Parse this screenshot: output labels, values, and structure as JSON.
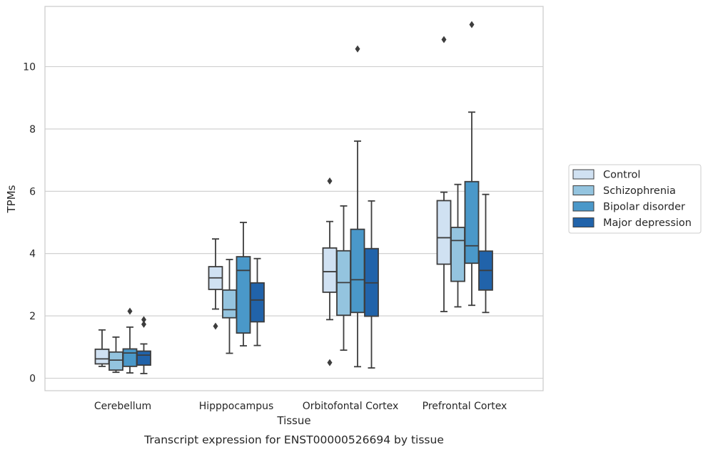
{
  "chart_data": {
    "type": "box",
    "caption": "Transcript expression for ENST00000526694 by tissue",
    "xlabel": "Tissue",
    "ylabel": "TPMs",
    "ylim": [
      -0.4,
      11.9
    ],
    "yticks": [
      0,
      2,
      4,
      6,
      8,
      10
    ],
    "grid": "horizontal",
    "legend_position": "right",
    "categories": [
      "Cerebellum",
      "Hipppocampus",
      "Orbitofontal Cortex",
      "Prefrontal Cortex"
    ],
    "series": [
      {
        "name": "Control",
        "color": "#d0e1f2",
        "boxes": [
          {
            "whislo": 0.38,
            "q1": 0.46,
            "med": 0.62,
            "q3": 0.93,
            "whishi": 1.55,
            "fliers": []
          },
          {
            "whislo": 2.22,
            "q1": 2.85,
            "med": 3.22,
            "q3": 3.58,
            "whishi": 4.47,
            "fliers": [
              1.67
            ]
          },
          {
            "whislo": 1.88,
            "q1": 2.76,
            "med": 3.42,
            "q3": 4.18,
            "whishi": 5.03,
            "fliers": [
              6.33,
              0.5
            ]
          },
          {
            "whislo": 2.14,
            "q1": 3.66,
            "med": 4.51,
            "q3": 5.7,
            "whishi": 5.97,
            "fliers": [
              10.87
            ]
          }
        ]
      },
      {
        "name": "Schizophrenia",
        "color": "#94c4df",
        "boxes": [
          {
            "whislo": 0.19,
            "q1": 0.26,
            "med": 0.58,
            "q3": 0.84,
            "whishi": 1.32,
            "fliers": []
          },
          {
            "whislo": 0.8,
            "q1": 1.94,
            "med": 2.2,
            "q3": 2.83,
            "whishi": 3.81,
            "fliers": []
          },
          {
            "whislo": 0.9,
            "q1": 2.02,
            "med": 3.07,
            "q3": 4.09,
            "whishi": 5.53,
            "fliers": []
          },
          {
            "whislo": 2.29,
            "q1": 3.11,
            "med": 4.42,
            "q3": 4.84,
            "whishi": 6.22,
            "fliers": []
          }
        ]
      },
      {
        "name": "Bipolar disorder",
        "color": "#4a98c9",
        "boxes": [
          {
            "whislo": 0.17,
            "q1": 0.38,
            "med": 0.81,
            "q3": 0.94,
            "whishi": 1.64,
            "fliers": [
              2.15
            ]
          },
          {
            "whislo": 1.04,
            "q1": 1.45,
            "med": 3.46,
            "q3": 3.9,
            "whishi": 5.0,
            "fliers": []
          },
          {
            "whislo": 0.37,
            "q1": 2.11,
            "med": 3.16,
            "q3": 4.78,
            "whishi": 7.61,
            "fliers": [
              10.57
            ]
          },
          {
            "whislo": 2.34,
            "q1": 3.69,
            "med": 4.25,
            "q3": 6.31,
            "whishi": 8.54,
            "fliers": [
              11.35
            ]
          }
        ]
      },
      {
        "name": "Major depression",
        "color": "#2163aa",
        "boxes": [
          {
            "whislo": 0.15,
            "q1": 0.42,
            "med": 0.74,
            "q3": 0.87,
            "whishi": 1.1,
            "fliers": [
              1.88,
              1.73
            ]
          },
          {
            "whislo": 1.05,
            "q1": 1.81,
            "med": 2.51,
            "q3": 3.06,
            "whishi": 3.84,
            "fliers": []
          },
          {
            "whislo": 0.33,
            "q1": 1.99,
            "med": 3.06,
            "q3": 4.16,
            "whishi": 5.69,
            "fliers": []
          },
          {
            "whislo": 2.11,
            "q1": 2.83,
            "med": 3.46,
            "q3": 4.08,
            "whishi": 5.9,
            "fliers": []
          }
        ]
      }
    ]
  }
}
